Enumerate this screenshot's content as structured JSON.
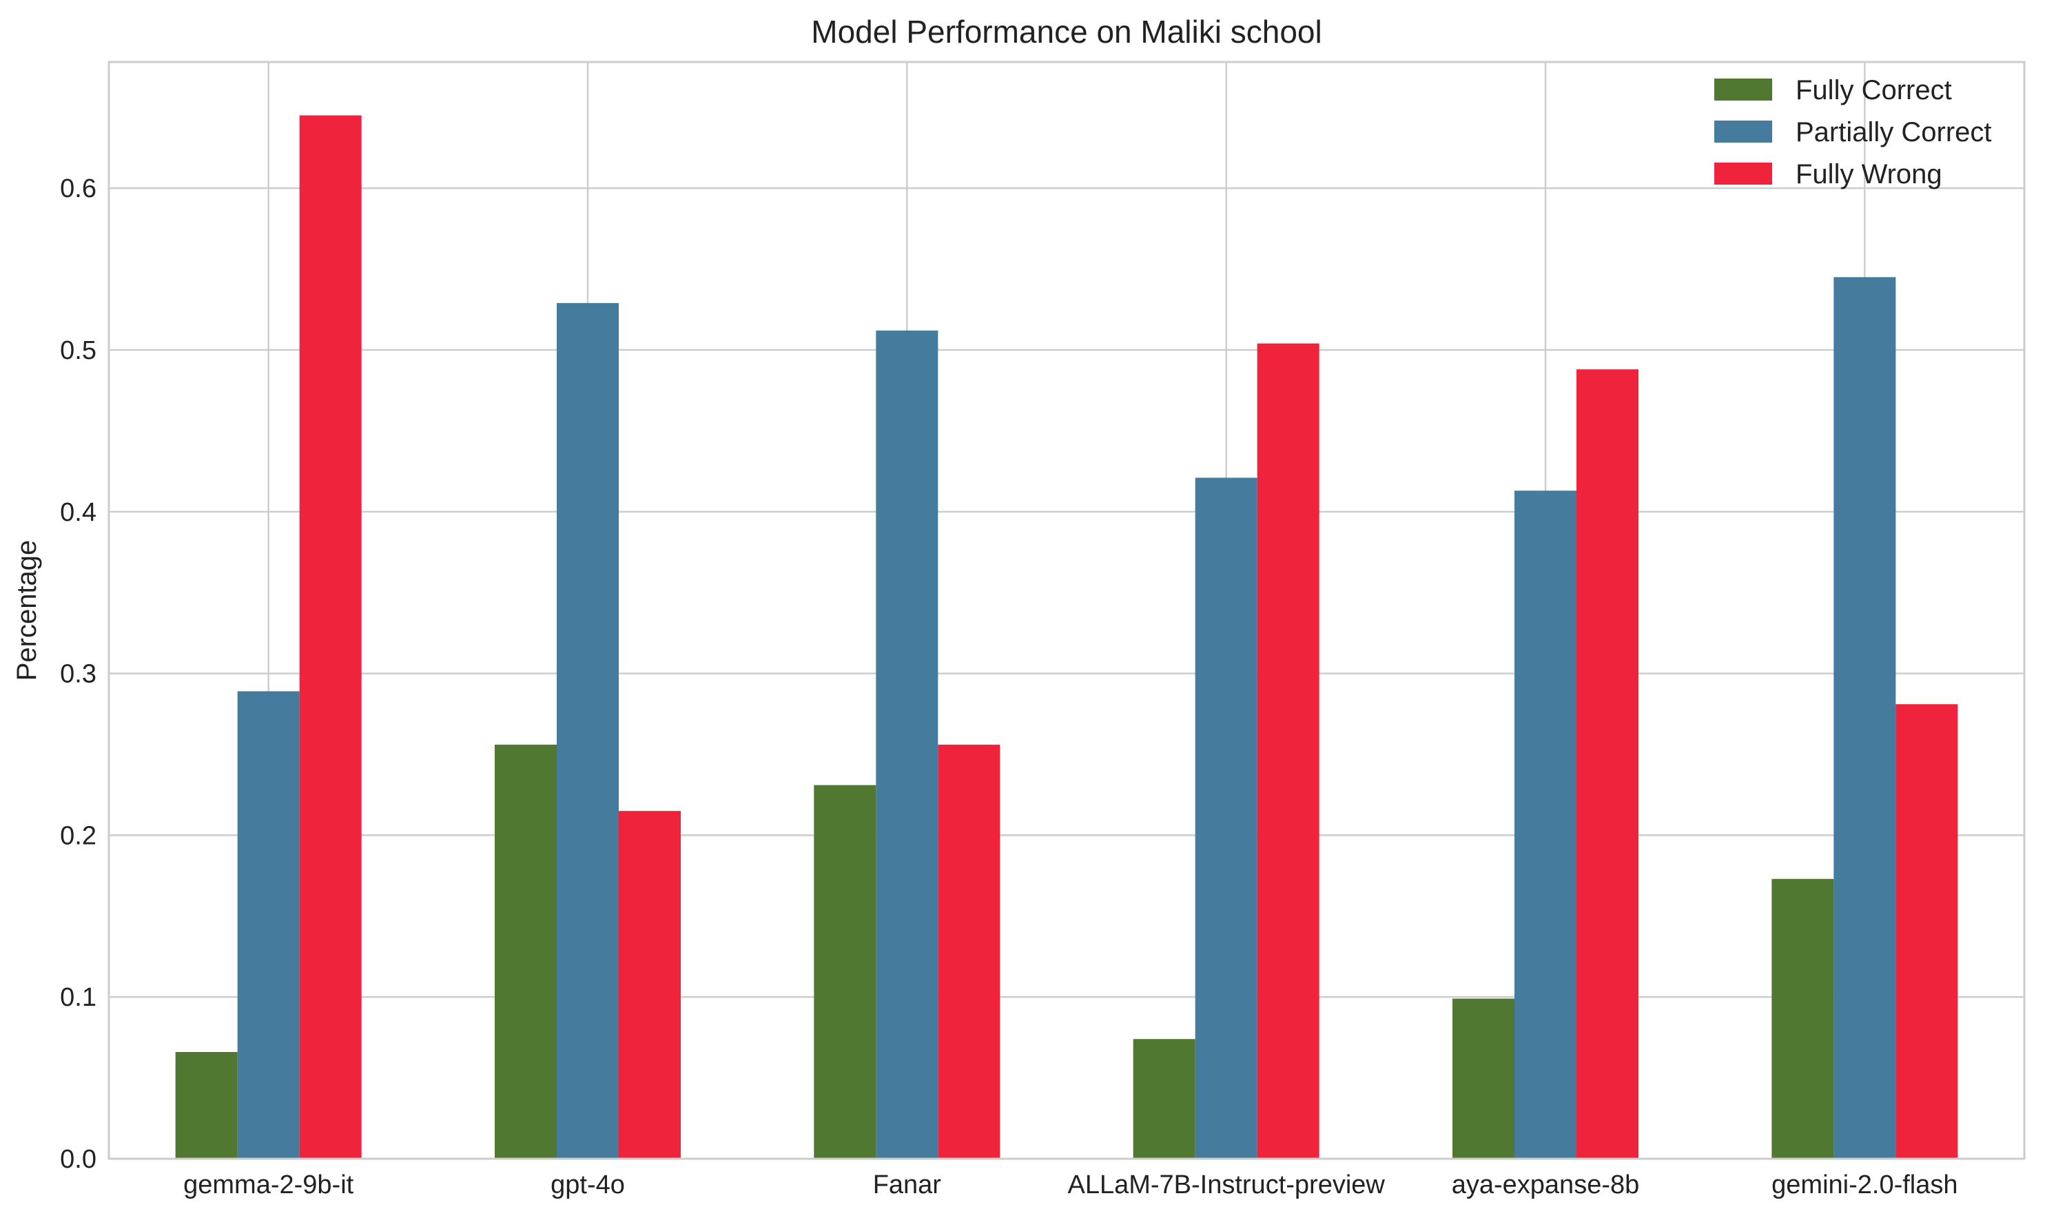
{
  "chart_data": {
    "type": "bar",
    "title": "Model Performance on Maliki school",
    "xlabel": "",
    "ylabel": "Percentage",
    "categories": [
      "gemma-2-9b-it",
      "gpt-4o",
      "Fanar",
      "ALLaM-7B-Instruct-preview",
      "aya-expanse-8b",
      "gemini-2.0-flash"
    ],
    "series": [
      {
        "name": "Fully Correct",
        "color": "#507830",
        "values": [
          0.066,
          0.256,
          0.231,
          0.074,
          0.099,
          0.173
        ]
      },
      {
        "name": "Partially Correct",
        "color": "#457b9d",
        "values": [
          0.289,
          0.529,
          0.512,
          0.421,
          0.413,
          0.545
        ]
      },
      {
        "name": "Fully Wrong",
        "color": "#ef233c",
        "values": [
          0.645,
          0.215,
          0.256,
          0.504,
          0.488,
          0.281
        ]
      }
    ],
    "ylim": [
      0,
      0.678
    ],
    "yticks": [
      "0.0",
      "0.1",
      "0.2",
      "0.3",
      "0.4",
      "0.5",
      "0.6"
    ],
    "grid": true,
    "legend_position": "top-right"
  }
}
